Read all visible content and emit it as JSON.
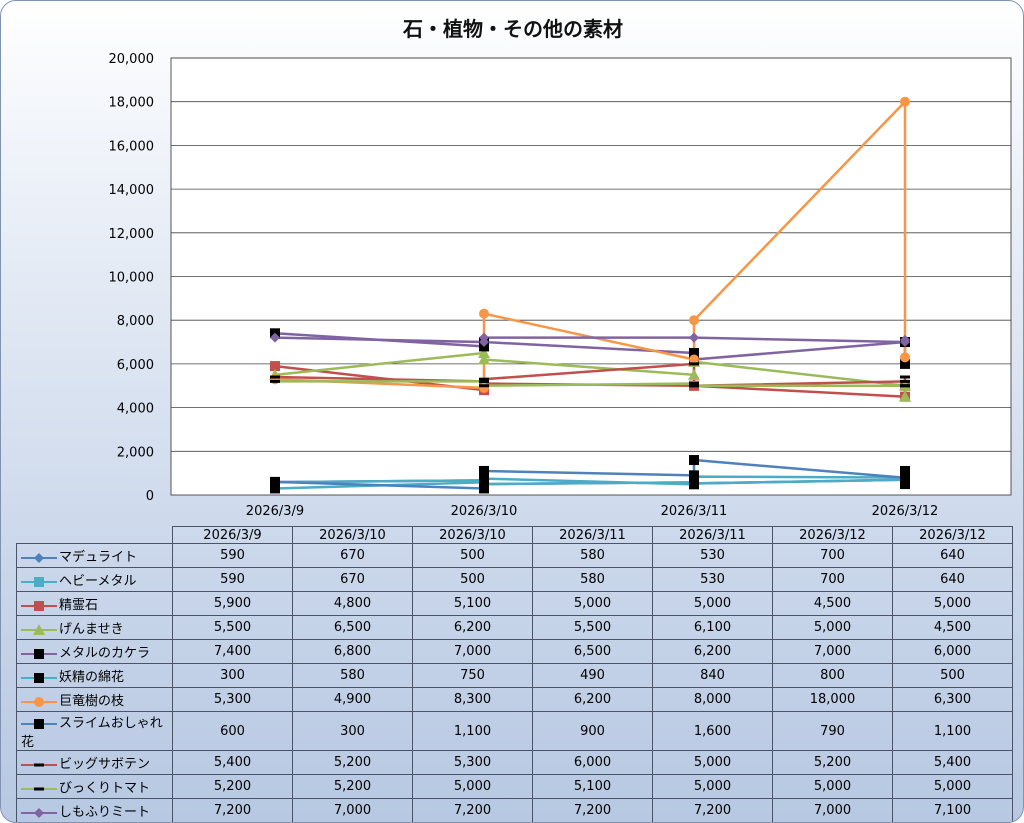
{
  "chart_data": {
    "type": "line",
    "title": "石・植物・その他の素材",
    "x_axis_ticks": [
      "2026/3/9",
      "2026/3/10",
      "2026/3/11",
      "2026/3/12"
    ],
    "x": [
      "2026/3/9",
      "2026/3/10",
      "2026/3/10",
      "2026/3/11",
      "2026/3/11",
      "2026/3/12",
      "2026/3/12"
    ],
    "ylim": [
      0,
      20000
    ],
    "y_ticks": [
      "0",
      "2,000",
      "4,000",
      "6,000",
      "8,000",
      "10,000",
      "12,000",
      "14,000",
      "16,000",
      "18,000",
      "20,000"
    ],
    "grid": true,
    "legend": "data-table",
    "series": [
      {
        "name": "マデュライト",
        "color": "#4f81bd",
        "marker": "diamond",
        "values": [
          590,
          670,
          500,
          580,
          530,
          700,
          640
        ],
        "labels": [
          "590",
          "670",
          "500",
          "580",
          "530",
          "700",
          "640"
        ]
      },
      {
        "name": "ヘビーメタル",
        "color": "#4bacc6",
        "marker": "square",
        "values": [
          590,
          670,
          500,
          580,
          530,
          700,
          640
        ],
        "labels": [
          "590",
          "670",
          "500",
          "580",
          "530",
          "700",
          "640"
        ]
      },
      {
        "name": "精霊石",
        "color": "#c0504d",
        "marker": "square",
        "values": [
          5900,
          4800,
          5100,
          5000,
          5000,
          4500,
          5000
        ],
        "labels": [
          "5,900",
          "4,800",
          "5,100",
          "5,000",
          "5,000",
          "4,500",
          "5,000"
        ]
      },
      {
        "name": "げんませき",
        "color": "#9bbb59",
        "marker": "triangle",
        "values": [
          5500,
          6500,
          6200,
          5500,
          6100,
          5000,
          4500
        ],
        "labels": [
          "5,500",
          "6,500",
          "6,200",
          "5,500",
          "6,100",
          "5,000",
          "4,500"
        ]
      },
      {
        "name": "メタルのカケラ",
        "color": "#8064a2",
        "marker": "black-square",
        "values": [
          7400,
          6800,
          7000,
          6500,
          6200,
          7000,
          6000
        ],
        "labels": [
          "7,400",
          "6,800",
          "7,000",
          "6,500",
          "6,200",
          "7,000",
          "6,000"
        ]
      },
      {
        "name": "妖精の綿花",
        "color": "#4bacc6",
        "marker": "black-square",
        "values": [
          300,
          580,
          750,
          490,
          840,
          800,
          500
        ],
        "labels": [
          "300",
          "580",
          "750",
          "490",
          "840",
          "800",
          "500"
        ]
      },
      {
        "name": "巨竜樹の枝",
        "color": "#f79646",
        "marker": "circle",
        "values": [
          5300,
          4900,
          8300,
          6200,
          8000,
          18000,
          6300
        ],
        "labels": [
          "5,300",
          "4,900",
          "8,300",
          "6,200",
          "8,000",
          "18,000",
          "6,300"
        ]
      },
      {
        "name": "スライムおしゃれ花",
        "color": "#4f81bd",
        "marker": "black-square",
        "values": [
          600,
          300,
          1100,
          900,
          1600,
          790,
          1100
        ],
        "labels": [
          "600",
          "300",
          "1,100",
          "900",
          "1,600",
          "790",
          "1,100"
        ]
      },
      {
        "name": "ビッグサボテン",
        "color": "#c0504d",
        "marker": "dash",
        "values": [
          5400,
          5200,
          5300,
          6000,
          5000,
          5200,
          5400
        ],
        "labels": [
          "5,400",
          "5,200",
          "5,300",
          "6,000",
          "5,000",
          "5,200",
          "5,400"
        ]
      },
      {
        "name": "びっくりトマト",
        "color": "#9bbb59",
        "marker": "dash",
        "values": [
          5200,
          5200,
          5000,
          5100,
          5000,
          5000,
          5000
        ],
        "labels": [
          "5,200",
          "5,200",
          "5,000",
          "5,100",
          "5,000",
          "5,000",
          "5,000"
        ]
      },
      {
        "name": "しもふりミート",
        "color": "#8064a2",
        "marker": "diamond",
        "values": [
          7200,
          7000,
          7200,
          7200,
          7200,
          7000,
          7100
        ],
        "labels": [
          "7,200",
          "7,000",
          "7,200",
          "7,200",
          "7,200",
          "7,000",
          "7,100"
        ]
      }
    ]
  }
}
